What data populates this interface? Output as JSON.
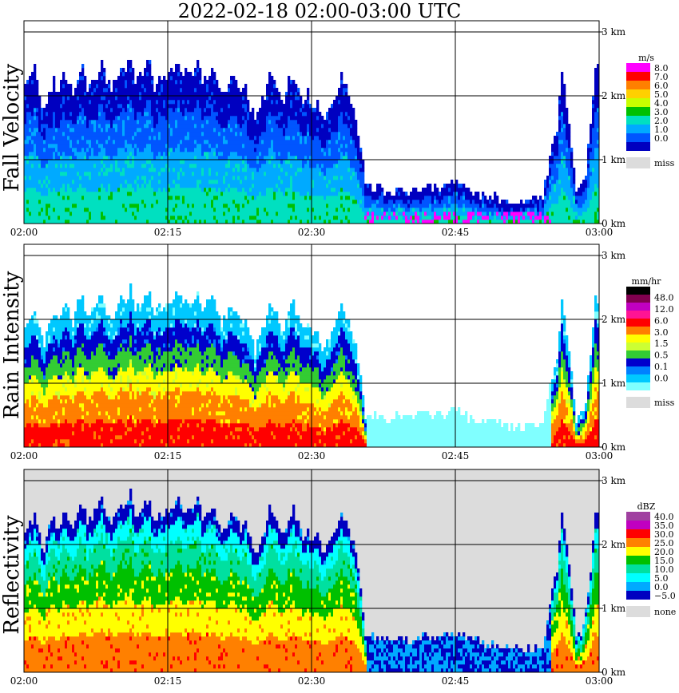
{
  "title": "2022-02-18   02:00-03:00 UTC",
  "colors": {
    "missing": "#dcdcdc",
    "grid": "#000000"
  },
  "chart_data": [
    {
      "type": "heatmap",
      "ylabel": "Fall Velocity",
      "x_ticks": [
        "02:00",
        "02:15",
        "02:30",
        "02:45",
        "03:00"
      ],
      "y_ticks": [
        "0 km",
        "1 km",
        "2 km",
        "3 km"
      ],
      "ylim_km": [
        0,
        3.2
      ],
      "grid": true,
      "background": "white",
      "legend": {
        "unit": "m/s",
        "labels": [
          "8.0",
          "7.0",
          "6.0",
          "5.0",
          "4.0",
          "3.0",
          "2.0",
          "1.0",
          "0.0"
        ],
        "colors": [
          "#ff00ff",
          "#ff0000",
          "#ff8000",
          "#ffd000",
          "#c8ff00",
          "#00c000",
          "#00e0c0",
          "#00aaff",
          "#0055ff",
          "#0000c0"
        ],
        "miss_label": "miss"
      },
      "echo": [
        [
          0,
          2.1
        ],
        [
          0.5,
          2.3
        ],
        [
          1,
          2.4
        ],
        [
          1.5,
          2.0
        ],
        [
          2,
          1.7
        ],
        [
          2.5,
          2.0
        ],
        [
          3,
          2.2
        ],
        [
          3.5,
          2.0
        ],
        [
          4,
          2.3
        ],
        [
          4.5,
          2.2
        ],
        [
          5,
          2.0
        ],
        [
          5.5,
          2.3
        ],
        [
          6,
          2.4
        ],
        [
          6.5,
          2.1
        ],
        [
          7,
          2.2
        ],
        [
          7.5,
          2.3
        ],
        [
          8,
          2.5
        ],
        [
          8.5,
          2.2
        ],
        [
          9,
          2.1
        ],
        [
          9.5,
          2.2
        ],
        [
          10,
          2.4
        ],
        [
          10.5,
          2.3
        ],
        [
          11,
          2.6
        ],
        [
          11.5,
          2.2
        ],
        [
          12,
          2.3
        ],
        [
          12.5,
          2.4
        ],
        [
          13,
          2.5
        ],
        [
          13.5,
          2.1
        ],
        [
          14,
          2.3
        ],
        [
          14.5,
          2.2
        ],
        [
          15,
          2.3
        ],
        [
          15.5,
          2.4
        ],
        [
          16,
          2.5
        ],
        [
          16.5,
          2.3
        ],
        [
          17,
          2.4
        ],
        [
          17.5,
          2.3
        ],
        [
          18,
          2.5
        ],
        [
          18.5,
          2.2
        ],
        [
          19,
          2.3
        ],
        [
          19.5,
          2.4
        ],
        [
          20,
          2.2
        ],
        [
          20.5,
          2.0
        ],
        [
          21,
          2.1
        ],
        [
          21.5,
          2.3
        ],
        [
          22,
          2.2
        ],
        [
          22.5,
          2.0
        ],
        [
          23,
          2.1
        ],
        [
          23.5,
          1.8
        ],
        [
          24,
          1.6
        ],
        [
          24.5,
          1.8
        ],
        [
          25,
          2.0
        ],
        [
          25.5,
          2.3
        ],
        [
          26,
          2.2
        ],
        [
          26.5,
          2.0
        ],
        [
          27,
          1.9
        ],
        [
          27.5,
          2.2
        ],
        [
          28,
          2.3
        ],
        [
          28.5,
          2.1
        ],
        [
          29,
          1.9
        ],
        [
          29.5,
          2.0
        ],
        [
          30,
          1.8
        ],
        [
          30.5,
          1.9
        ],
        [
          31,
          1.6
        ],
        [
          31.5,
          1.7
        ],
        [
          32,
          1.9
        ],
        [
          32.5,
          2.0
        ],
        [
          33,
          2.3
        ],
        [
          33.5,
          2.1
        ],
        [
          34,
          1.9
        ],
        [
          34.5,
          1.6
        ],
        [
          35,
          1.2
        ],
        [
          35.5,
          0.6
        ],
        [
          36,
          0.55
        ],
        [
          37,
          0.5
        ],
        [
          38,
          0.45
        ],
        [
          39,
          0.5
        ],
        [
          40,
          0.45
        ],
        [
          41,
          0.5
        ],
        [
          42,
          0.55
        ],
        [
          43,
          0.5
        ],
        [
          44,
          0.55
        ],
        [
          45,
          0.6
        ],
        [
          46,
          0.5
        ],
        [
          47,
          0.45
        ],
        [
          48,
          0.4
        ],
        [
          49,
          0.4
        ],
        [
          50,
          0.35
        ],
        [
          51,
          0.35
        ],
        [
          52,
          0.3
        ],
        [
          53,
          0.35
        ],
        [
          54,
          0.4
        ],
        [
          55,
          1.2
        ],
        [
          55.5,
          1.5
        ],
        [
          56,
          2.4
        ],
        [
          56.5,
          1.8
        ],
        [
          57,
          1.2
        ],
        [
          57.5,
          0.5
        ],
        [
          58,
          0.6
        ],
        [
          58.5,
          0.8
        ],
        [
          59,
          1.5
        ],
        [
          59.5,
          2.4
        ],
        [
          60,
          2.4
        ]
      ]
    },
    {
      "type": "heatmap",
      "ylabel": "Rain Intensity",
      "x_ticks": [
        "02:00",
        "02:15",
        "02:30",
        "02:45",
        "03:00"
      ],
      "y_ticks": [
        "0 km",
        "1 km",
        "2 km",
        "3 km"
      ],
      "ylim_km": [
        0,
        3.2
      ],
      "grid": true,
      "background": "white",
      "legend": {
        "unit": "mm/hr",
        "labels": [
          "48.0",
          "12.0",
          "6.0",
          "3.0",
          "1.5",
          "0.5",
          "0.1",
          "0.0"
        ],
        "colors": [
          "#000000",
          "#80004f",
          "#c000c0",
          "#ff1493",
          "#ff0000",
          "#ff7f00",
          "#ffff00",
          "#ccff33",
          "#33cc33",
          "#0000cc",
          "#0080ff",
          "#00c8ff",
          "#80ffff"
        ],
        "miss_label": "miss"
      },
      "echo": [
        [
          0,
          1.8
        ],
        [
          0.5,
          2.0
        ],
        [
          1,
          2.1
        ],
        [
          1.5,
          1.8
        ],
        [
          2,
          1.6
        ],
        [
          2.5,
          1.9
        ],
        [
          3,
          2.1
        ],
        [
          3.5,
          1.9
        ],
        [
          4,
          2.2
        ],
        [
          4.5,
          2.1
        ],
        [
          5,
          1.9
        ],
        [
          5.5,
          2.2
        ],
        [
          6,
          2.3
        ],
        [
          6.5,
          2.0
        ],
        [
          7,
          2.1
        ],
        [
          7.5,
          2.2
        ],
        [
          8,
          2.4
        ],
        [
          8.5,
          2.1
        ],
        [
          9,
          2.0
        ],
        [
          9.5,
          2.1
        ],
        [
          10,
          2.3
        ],
        [
          10.5,
          2.2
        ],
        [
          11,
          2.5
        ],
        [
          11.5,
          2.1
        ],
        [
          12,
          2.2
        ],
        [
          12.5,
          2.3
        ],
        [
          13,
          2.4
        ],
        [
          13.5,
          2.0
        ],
        [
          14,
          2.2
        ],
        [
          14.5,
          2.1
        ],
        [
          15,
          2.2
        ],
        [
          15.5,
          2.3
        ],
        [
          16,
          2.4
        ],
        [
          16.5,
          2.2
        ],
        [
          17,
          2.3
        ],
        [
          17.5,
          2.2
        ],
        [
          18,
          2.4
        ],
        [
          18.5,
          2.1
        ],
        [
          19,
          2.2
        ],
        [
          19.5,
          2.3
        ],
        [
          20,
          2.1
        ],
        [
          20.5,
          1.9
        ],
        [
          21,
          2.0
        ],
        [
          21.5,
          2.2
        ],
        [
          22,
          2.1
        ],
        [
          22.5,
          1.9
        ],
        [
          23,
          2.0
        ],
        [
          23.5,
          1.7
        ],
        [
          24,
          1.5
        ],
        [
          24.5,
          1.7
        ],
        [
          25,
          1.9
        ],
        [
          25.5,
          2.2
        ],
        [
          26,
          2.1
        ],
        [
          26.5,
          1.9
        ],
        [
          27,
          1.8
        ],
        [
          27.5,
          2.1
        ],
        [
          28,
          2.2
        ],
        [
          28.5,
          2.0
        ],
        [
          29,
          1.8
        ],
        [
          29.5,
          1.9
        ],
        [
          30,
          1.7
        ],
        [
          30.5,
          1.8
        ],
        [
          31,
          1.5
        ],
        [
          31.5,
          1.6
        ],
        [
          32,
          1.8
        ],
        [
          32.5,
          1.9
        ],
        [
          33,
          2.2
        ],
        [
          33.5,
          2.0
        ],
        [
          34,
          1.8
        ],
        [
          34.5,
          1.5
        ],
        [
          35,
          1.1
        ],
        [
          35.5,
          0.5
        ],
        [
          36,
          0.45
        ],
        [
          37,
          0.45
        ],
        [
          38,
          0.4
        ],
        [
          39,
          0.45
        ],
        [
          40,
          0.4
        ],
        [
          41,
          0.45
        ],
        [
          42,
          0.5
        ],
        [
          43,
          0.45
        ],
        [
          44,
          0.5
        ],
        [
          45,
          0.55
        ],
        [
          46,
          0.45
        ],
        [
          47,
          0.4
        ],
        [
          48,
          0.35
        ],
        [
          49,
          0.35
        ],
        [
          50,
          0.3
        ],
        [
          51,
          0.3
        ],
        [
          52,
          0.25
        ],
        [
          53,
          0.3
        ],
        [
          54,
          0.35
        ],
        [
          55,
          1.1
        ],
        [
          55.5,
          1.4
        ],
        [
          56,
          2.3
        ],
        [
          56.5,
          1.7
        ],
        [
          57,
          1.1
        ],
        [
          57.5,
          0.4
        ],
        [
          58,
          0.5
        ],
        [
          58.5,
          0.7
        ],
        [
          59,
          1.4
        ],
        [
          59.5,
          2.3
        ],
        [
          60,
          2.3
        ]
      ]
    },
    {
      "type": "heatmap",
      "ylabel": "Reflectivity",
      "x_ticks": [
        "02:00",
        "02:15",
        "02:30",
        "02:45",
        "03:00"
      ],
      "y_ticks": [
        "0 km",
        "1 km",
        "2 km",
        "3 km"
      ],
      "ylim_km": [
        0,
        3.2
      ],
      "grid": true,
      "background": "#dcdcdc",
      "legend": {
        "unit": "dBZ",
        "labels": [
          "40.0",
          "35.0",
          "30.0",
          "25.0",
          "20.0",
          "15.0",
          "10.0",
          "5.0",
          "0.0",
          "−5.0"
        ],
        "colors": [
          "#a040a0",
          "#c000c0",
          "#ff0000",
          "#ff8000",
          "#ffff00",
          "#00c000",
          "#00e0a0",
          "#00ffff",
          "#00aaff",
          "#0000c0"
        ],
        "miss_label": "none"
      },
      "echo": [
        [
          0,
          2.1
        ],
        [
          0.5,
          2.3
        ],
        [
          1,
          2.4
        ],
        [
          1.5,
          2.1
        ],
        [
          2,
          1.9
        ],
        [
          2.5,
          2.2
        ],
        [
          3,
          2.4
        ],
        [
          3.5,
          2.2
        ],
        [
          4,
          2.5
        ],
        [
          4.5,
          2.4
        ],
        [
          5,
          2.2
        ],
        [
          5.5,
          2.5
        ],
        [
          6,
          2.6
        ],
        [
          6.5,
          2.3
        ],
        [
          7,
          2.4
        ],
        [
          7.5,
          2.5
        ],
        [
          8,
          2.7
        ],
        [
          8.5,
          2.4
        ],
        [
          9,
          2.3
        ],
        [
          9.5,
          2.4
        ],
        [
          10,
          2.6
        ],
        [
          10.5,
          2.5
        ],
        [
          11,
          2.8
        ],
        [
          11.5,
          2.4
        ],
        [
          12,
          2.5
        ],
        [
          12.5,
          2.6
        ],
        [
          13,
          2.7
        ],
        [
          13.5,
          2.3
        ],
        [
          14,
          2.5
        ],
        [
          14.5,
          2.4
        ],
        [
          15,
          2.5
        ],
        [
          15.5,
          2.6
        ],
        [
          16,
          2.7
        ],
        [
          16.5,
          2.5
        ],
        [
          17,
          2.6
        ],
        [
          17.5,
          2.5
        ],
        [
          18,
          2.7
        ],
        [
          18.5,
          2.4
        ],
        [
          19,
          2.5
        ],
        [
          19.5,
          2.6
        ],
        [
          20,
          2.4
        ],
        [
          20.5,
          2.2
        ],
        [
          21,
          2.3
        ],
        [
          21.5,
          2.5
        ],
        [
          22,
          2.4
        ],
        [
          22.5,
          2.2
        ],
        [
          23,
          2.3
        ],
        [
          23.5,
          2.0
        ],
        [
          24,
          1.8
        ],
        [
          24.5,
          2.0
        ],
        [
          25,
          2.2
        ],
        [
          25.5,
          2.5
        ],
        [
          26,
          2.4
        ],
        [
          26.5,
          2.2
        ],
        [
          27,
          2.1
        ],
        [
          27.5,
          2.4
        ],
        [
          28,
          2.5
        ],
        [
          28.5,
          2.3
        ],
        [
          29,
          2.1
        ],
        [
          29.5,
          2.2
        ],
        [
          30,
          2.0
        ],
        [
          30.5,
          2.1
        ],
        [
          31,
          1.8
        ],
        [
          31.5,
          1.9
        ],
        [
          32,
          2.1
        ],
        [
          32.5,
          2.2
        ],
        [
          33,
          2.5
        ],
        [
          33.5,
          2.3
        ],
        [
          34,
          2.1
        ],
        [
          34.5,
          1.8
        ],
        [
          35,
          1.3
        ],
        [
          35.5,
          0.6
        ],
        [
          36,
          0.55
        ],
        [
          37,
          0.5
        ],
        [
          38,
          0.45
        ],
        [
          39,
          0.5
        ],
        [
          40,
          0.45
        ],
        [
          41,
          0.5
        ],
        [
          42,
          0.55
        ],
        [
          43,
          0.5
        ],
        [
          44,
          0.55
        ],
        [
          45,
          0.6
        ],
        [
          46,
          0.5
        ],
        [
          47,
          0.45
        ],
        [
          48,
          0.4
        ],
        [
          49,
          0.4
        ],
        [
          50,
          0.35
        ],
        [
          51,
          0.35
        ],
        [
          52,
          0.3
        ],
        [
          53,
          0.35
        ],
        [
          54,
          0.4
        ],
        [
          55,
          1.3
        ],
        [
          55.5,
          1.6
        ],
        [
          56,
          2.5
        ],
        [
          56.5,
          1.9
        ],
        [
          57,
          1.3
        ],
        [
          57.5,
          0.5
        ],
        [
          58,
          0.6
        ],
        [
          58.5,
          0.9
        ],
        [
          59,
          1.6
        ],
        [
          59.5,
          2.5
        ],
        [
          60,
          2.5
        ]
      ]
    }
  ]
}
